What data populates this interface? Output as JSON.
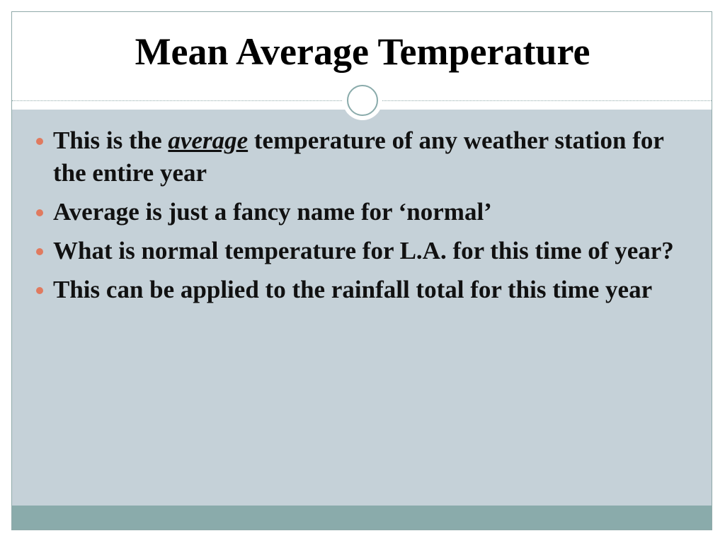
{
  "title": "Mean Average Temperature",
  "bullets": [
    [
      "This is the",
      "average",
      "temperature of any weather station for the entire year"
    ],
    [
      "Average is just a fancy name for ‘normal’"
    ],
    [
      "What is normal temperature for L.A. for this time of year?"
    ],
    [
      "This can be applied to the rainfall total for this time year"
    ]
  ]
}
